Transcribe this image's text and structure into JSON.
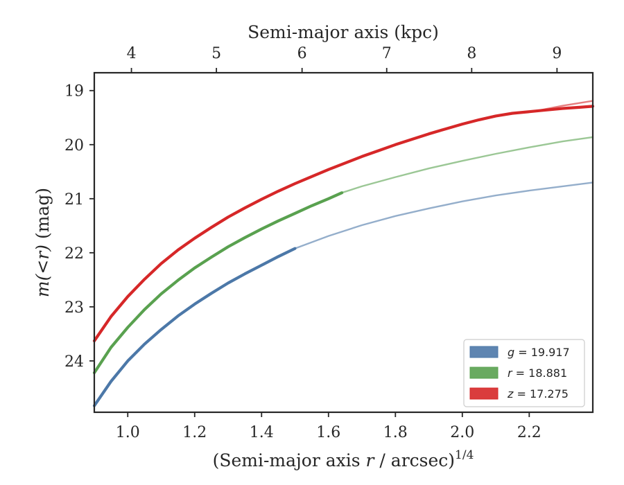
{
  "chart_data": {
    "type": "line",
    "xlabel": "(Semi-major axis r / arcsec)",
    "xlabel_exponent": "1/4",
    "ylabel": "m(<r) (mag)",
    "top_xlabel": "Semi-major axis (kpc)",
    "xlim": [
      0.9,
      2.39
    ],
    "ylim": [
      24.95,
      18.67
    ],
    "x_ticks": [
      1.0,
      1.2,
      1.4,
      1.6,
      1.8,
      2.0,
      2.2
    ],
    "x_tick_labels": [
      "1.0",
      "1.2",
      "1.4",
      "1.6",
      "1.8",
      "2.0",
      "2.2"
    ],
    "y_ticks": [
      19,
      20,
      21,
      22,
      23,
      24
    ],
    "y_tick_labels": [
      "19",
      "20",
      "21",
      "22",
      "23",
      "24"
    ],
    "top_ticks": [
      {
        "kpc": 4,
        "x": 1.011,
        "label": "4"
      },
      {
        "kpc": 5,
        "x": 1.265,
        "label": "5"
      },
      {
        "kpc": 6,
        "x": 1.521,
        "label": "6"
      },
      {
        "kpc": 7,
        "x": 1.774,
        "label": "7"
      },
      {
        "kpc": 8,
        "x": 2.028,
        "label": "8"
      },
      {
        "kpc": 9,
        "x": 2.283,
        "label": "9"
      }
    ],
    "legend_position": "lower-right",
    "series": [
      {
        "band": "g",
        "name": "g = 19.917",
        "color": "#4c78a8",
        "data_x": [
          0.9,
          0.95,
          1.0,
          1.05,
          1.1,
          1.15,
          1.2,
          1.25,
          1.3,
          1.35,
          1.4,
          1.45,
          1.5
        ],
        "data_y": [
          24.83,
          24.38,
          24.0,
          23.69,
          23.42,
          23.17,
          22.95,
          22.75,
          22.56,
          22.39,
          22.23,
          22.07,
          21.92
        ],
        "model_x": [
          1.5,
          1.6,
          1.7,
          1.8,
          1.9,
          2.0,
          2.1,
          2.2,
          2.3,
          2.39
        ],
        "model_y": [
          21.92,
          21.69,
          21.49,
          21.32,
          21.18,
          21.05,
          20.94,
          20.85,
          20.77,
          20.7
        ]
      },
      {
        "band": "r",
        "name": "r = 18.881",
        "color": "#59a14f",
        "data_x": [
          0.9,
          0.95,
          1.0,
          1.05,
          1.1,
          1.15,
          1.2,
          1.25,
          1.3,
          1.35,
          1.4,
          1.45,
          1.5,
          1.55,
          1.6,
          1.64
        ],
        "data_y": [
          24.22,
          23.75,
          23.38,
          23.05,
          22.76,
          22.51,
          22.28,
          22.08,
          21.89,
          21.72,
          21.56,
          21.41,
          21.27,
          21.13,
          21.0,
          20.89
        ],
        "model_x": [
          1.64,
          1.7,
          1.8,
          1.9,
          2.0,
          2.1,
          2.2,
          2.3,
          2.39
        ],
        "model_y": [
          20.89,
          20.77,
          20.6,
          20.44,
          20.3,
          20.17,
          20.05,
          19.94,
          19.86
        ]
      },
      {
        "band": "z",
        "name": "z = 17.275",
        "color": "#d62728",
        "data_x": [
          0.9,
          0.95,
          1.0,
          1.05,
          1.1,
          1.15,
          1.2,
          1.25,
          1.3,
          1.35,
          1.4,
          1.45,
          1.5,
          1.55,
          1.6,
          1.65,
          1.7,
          1.75,
          1.8,
          1.85,
          1.9,
          1.95,
          2.0,
          2.05,
          2.1,
          2.15,
          2.2,
          2.25,
          2.3,
          2.35,
          2.39
        ],
        "data_y": [
          23.63,
          23.18,
          22.81,
          22.49,
          22.2,
          21.95,
          21.73,
          21.53,
          21.34,
          21.17,
          21.01,
          20.86,
          20.72,
          20.59,
          20.46,
          20.34,
          20.22,
          20.11,
          20.0,
          19.9,
          19.8,
          19.71,
          19.62,
          19.54,
          19.47,
          19.42,
          19.39,
          19.36,
          19.33,
          19.31,
          19.29
        ],
        "model_x": [
          2.2,
          2.25,
          2.3,
          2.35,
          2.39
        ],
        "model_y": [
          19.4,
          19.34,
          19.28,
          19.23,
          19.19
        ]
      }
    ]
  }
}
